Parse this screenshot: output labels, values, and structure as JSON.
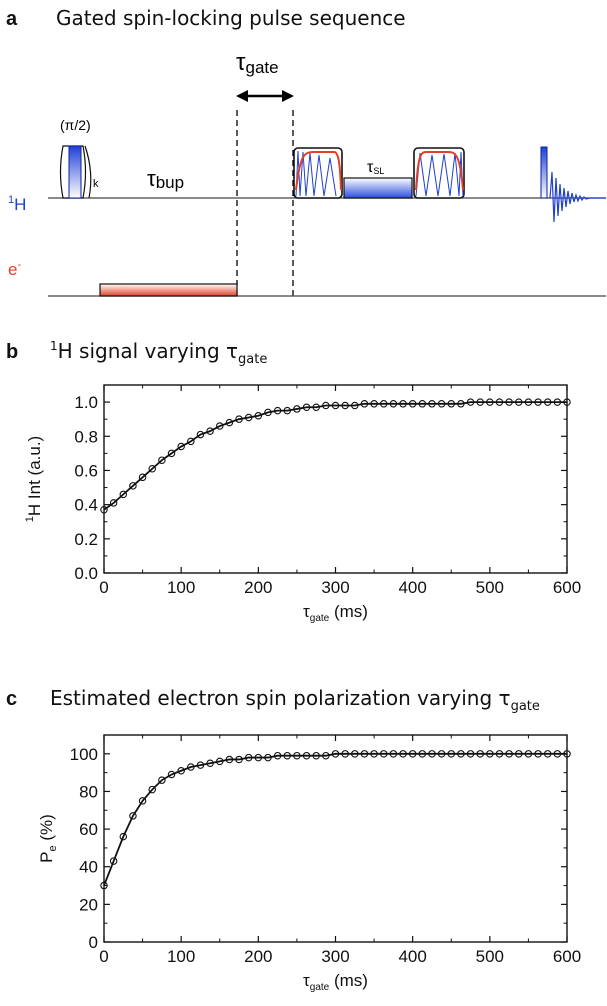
{
  "panel_a": {
    "letter": "a",
    "title": "Gated spin-locking pulse sequence",
    "tau_gate": {
      "sym": "τ",
      "sub": "gate"
    },
    "pi2": "(π/2)",
    "k": "k",
    "tau_bup": {
      "sym": "τ",
      "sub": "bup"
    },
    "tau_sl": {
      "sym": "τ",
      "sub": "SL"
    },
    "h_channel": {
      "sup": "1",
      "main": "H"
    },
    "e_channel": {
      "main": "e",
      "sup": "-"
    },
    "colors": {
      "proton": "#1f3fd6",
      "electron": "#e0402a",
      "dark_blue": "#0a1f9e"
    }
  },
  "panel_b": {
    "letter": "b",
    "title": {
      "sup": "1",
      "main": "H signal varying ",
      "sym": "τ",
      "sub": "gate"
    }
  },
  "panel_c": {
    "letter": "c",
    "title": {
      "main": "Estimated electron spin polarization varying ",
      "sym": "τ",
      "sub": "gate"
    }
  },
  "chart_data": [
    {
      "type": "scatter",
      "xlabel": {
        "sym": "τ",
        "sub": "gate",
        "unit": " (ms)"
      },
      "ylabel": {
        "sup": "1",
        "main": "H Int (a.u.)"
      },
      "xlim": [
        0,
        600
      ],
      "ylim": [
        0,
        1.1
      ],
      "x_ticks": [
        0,
        100,
        200,
        300,
        400,
        500,
        600
      ],
      "y_ticks": [
        0.0,
        0.2,
        0.4,
        0.6,
        0.8,
        1.0
      ],
      "y_tick_labels": [
        "0.0",
        "0.2",
        "0.4",
        "0.6",
        "0.8",
        "1.0"
      ],
      "series": [
        {
          "x": [
            0,
            12.5,
            25,
            37.5,
            50,
            62.5,
            75,
            87.5,
            100,
            112.5,
            125,
            137.5,
            150,
            162.5,
            175,
            187.5,
            200,
            212.5,
            225,
            237.5,
            250,
            262.5,
            275,
            287.5,
            300,
            312.5,
            325,
            337.5,
            350,
            362.5,
            375,
            387.5,
            400,
            412.5,
            425,
            437.5,
            450,
            462.5,
            475,
            487.5,
            500,
            512.5,
            525,
            537.5,
            550,
            562.5,
            575,
            587.5,
            600
          ],
          "y": [
            0.37,
            0.41,
            0.46,
            0.51,
            0.56,
            0.61,
            0.66,
            0.7,
            0.74,
            0.77,
            0.81,
            0.83,
            0.86,
            0.88,
            0.9,
            0.91,
            0.92,
            0.94,
            0.95,
            0.95,
            0.96,
            0.97,
            0.97,
            0.98,
            0.98,
            0.98,
            0.98,
            0.99,
            0.99,
            0.99,
            0.99,
            0.99,
            0.99,
            0.99,
            0.99,
            0.99,
            0.99,
            0.99,
            1.0,
            1.0,
            1.0,
            1.0,
            1.0,
            1.0,
            1.0,
            1.0,
            1.0,
            1.0,
            1.0
          ]
        }
      ],
      "fit_line": true,
      "marker": "open-circle"
    },
    {
      "type": "scatter",
      "xlabel": {
        "sym": "τ",
        "sub": "gate",
        "unit": " (ms)"
      },
      "ylabel": {
        "main": "P",
        "sub": "e",
        "unit": " (%)"
      },
      "xlim": [
        0,
        600
      ],
      "ylim": [
        0,
        110
      ],
      "x_ticks": [
        0,
        100,
        200,
        300,
        400,
        500,
        600
      ],
      "y_ticks": [
        0,
        20,
        40,
        60,
        80,
        100
      ],
      "y_tick_labels": [
        "0",
        "20",
        "40",
        "60",
        "80",
        "100"
      ],
      "series": [
        {
          "x": [
            0,
            12.5,
            25,
            37.5,
            50,
            62.5,
            75,
            87.5,
            100,
            112.5,
            125,
            137.5,
            150,
            162.5,
            175,
            187.5,
            200,
            212.5,
            225,
            237.5,
            250,
            262.5,
            275,
            287.5,
            300,
            312.5,
            325,
            337.5,
            350,
            362.5,
            375,
            387.5,
            400,
            412.5,
            425,
            437.5,
            450,
            462.5,
            475,
            487.5,
            500,
            512.5,
            525,
            537.5,
            550,
            562.5,
            575,
            587.5,
            600
          ],
          "y": [
            30,
            43,
            56,
            67,
            75,
            81,
            86,
            89,
            91,
            93,
            94,
            95,
            96,
            97,
            97,
            98,
            98,
            98,
            99,
            99,
            99,
            99,
            99,
            99,
            100,
            100,
            100,
            100,
            100,
            100,
            100,
            100,
            100,
            100,
            100,
            100,
            100,
            100,
            100,
            100,
            100,
            100,
            100,
            100,
            100,
            100,
            100,
            100,
            100
          ]
        }
      ],
      "fit_line": true,
      "marker": "open-circle"
    }
  ]
}
